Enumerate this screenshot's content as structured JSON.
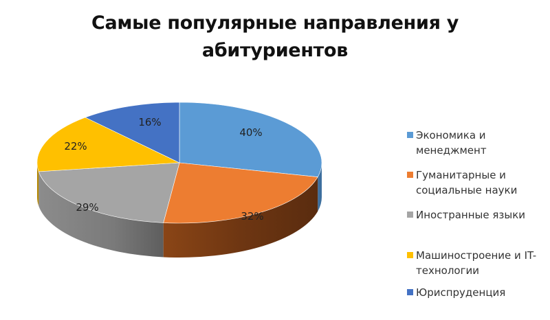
{
  "chart_data": {
    "type": "pie",
    "title": "Самые популярные направления у абитуриентов",
    "style": "3d-pie",
    "categories": [
      "Экономика и менеджмент",
      "Гуманитарные и социальные науки",
      "Иностранные языки",
      "Машиностроение и IT-технологии",
      "Юриспруденция"
    ],
    "values": [
      40,
      32,
      29,
      22,
      16
    ],
    "labels": [
      "40%",
      "32%",
      "29%",
      "22%",
      "16%"
    ],
    "colors": [
      "#5b9bd5",
      "#ed7d31",
      "#a5a5a5",
      "#ffc000",
      "#4472c4"
    ],
    "legend_position": "right"
  },
  "title": "Самые популярные направления у абитуриентов",
  "legend": [
    {
      "label": "Экономика и менеджмент",
      "color": "#5b9bd5"
    },
    {
      "label": "Гуманитарные и социальные науки",
      "color": "#ed7d31"
    },
    {
      "label": "Иностранные языки",
      "color": "#a5a5a5"
    },
    {
      "label": "Машиностроение и IT-технологии",
      "color": "#ffc000"
    },
    {
      "label": "Юриспруденция",
      "color": "#4472c4"
    }
  ],
  "slice_labels": [
    "40%",
    "32%",
    "29%",
    "22%",
    "16%"
  ]
}
